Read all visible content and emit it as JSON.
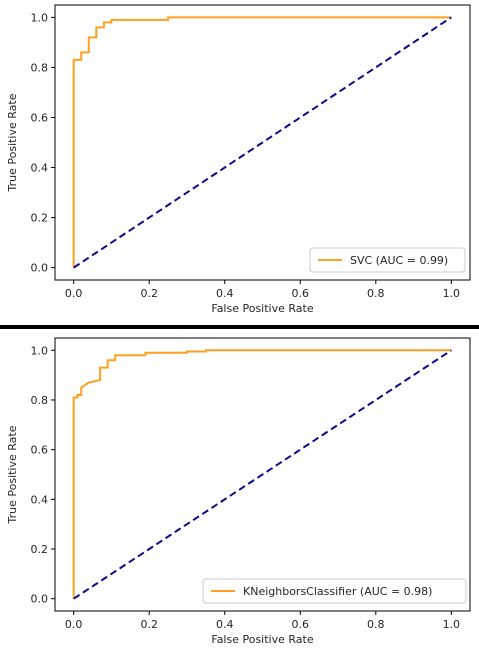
{
  "colors": {
    "roc_line": "#ffa020",
    "chance_line": "#0b0b8c",
    "divider": "#000000",
    "frame": "#000000"
  },
  "chart_data": [
    {
      "type": "line",
      "xlabel": "False Positive Rate",
      "ylabel": "True Positive Rate",
      "xlim": [
        0.0,
        1.0
      ],
      "ylim": [
        0.0,
        1.0
      ],
      "xticks": [
        "0.0",
        "0.2",
        "0.4",
        "0.6",
        "0.8",
        "1.0"
      ],
      "yticks": [
        "0.0",
        "0.2",
        "0.4",
        "0.6",
        "0.8",
        "1.0"
      ],
      "grid": false,
      "legend_position": "lower-right",
      "series": [
        {
          "name": "SVC (AUC = 0.99)",
          "style": "solid",
          "x": [
            0.0,
            0.0,
            0.02,
            0.02,
            0.04,
            0.04,
            0.06,
            0.06,
            0.08,
            0.08,
            0.1,
            0.1,
            0.25,
            0.25,
            1.0
          ],
          "y": [
            0.0,
            0.83,
            0.83,
            0.86,
            0.86,
            0.92,
            0.92,
            0.96,
            0.96,
            0.98,
            0.98,
            0.99,
            0.99,
            1.0,
            1.0
          ]
        },
        {
          "name": "",
          "style": "dashed",
          "x": [
            0.0,
            1.0
          ],
          "y": [
            0.0,
            1.0
          ]
        }
      ]
    },
    {
      "type": "line",
      "xlabel": "False Positive Rate",
      "ylabel": "True Positive Rate",
      "xlim": [
        0.0,
        1.0
      ],
      "ylim": [
        0.0,
        1.0
      ],
      "xticks": [
        "0.0",
        "0.2",
        "0.4",
        "0.6",
        "0.8",
        "1.0"
      ],
      "yticks": [
        "0.0",
        "0.2",
        "0.4",
        "0.6",
        "0.8",
        "1.0"
      ],
      "grid": false,
      "legend_position": "lower-right",
      "series": [
        {
          "name": "KNeighborsClassifier (AUC = 0.98)",
          "style": "solid",
          "x": [
            0.0,
            0.0,
            0.01,
            0.01,
            0.02,
            0.02,
            0.04,
            0.07,
            0.07,
            0.09,
            0.09,
            0.11,
            0.11,
            0.19,
            0.19,
            0.3,
            0.3,
            0.35,
            0.35,
            1.0
          ],
          "y": [
            0.0,
            0.81,
            0.81,
            0.82,
            0.82,
            0.85,
            0.87,
            0.88,
            0.93,
            0.93,
            0.96,
            0.96,
            0.98,
            0.98,
            0.99,
            0.99,
            0.995,
            0.995,
            1.0,
            1.0
          ]
        },
        {
          "name": "",
          "style": "dashed",
          "x": [
            0.0,
            1.0
          ],
          "y": [
            0.0,
            1.0
          ]
        }
      ]
    }
  ]
}
